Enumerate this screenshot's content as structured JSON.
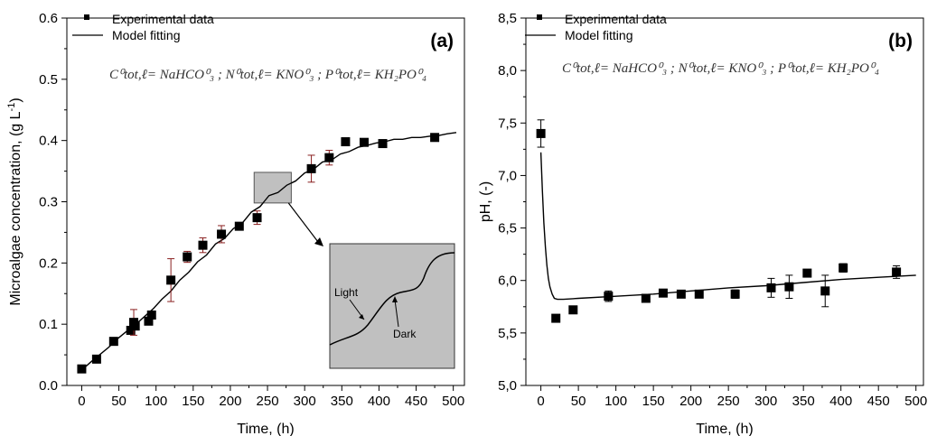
{
  "chart_data": [
    {
      "type": "scatter",
      "panel_label": "(a)",
      "xlabel": "Time, (h)",
      "ylabel": "Microalgae concentration, (g L",
      "ylabel_sup": "-1",
      "ylabel_close": ")",
      "xlim": [
        -20,
        515
      ],
      "ylim": [
        0,
        0.6
      ],
      "xticks": [
        0,
        50,
        100,
        150,
        200,
        250,
        300,
        350,
        400,
        450,
        500
      ],
      "xtick_labels": [
        "0",
        "50",
        "100",
        "150",
        "200",
        "250",
        "300",
        "350",
        "400",
        "450",
        "500"
      ],
      "yticks": [
        0.0,
        0.1,
        0.2,
        0.3,
        0.4,
        0.5,
        0.6
      ],
      "ytick_labels": [
        "0.0",
        "0.1",
        "0.2",
        "0.3",
        "0.4",
        "0.5",
        "0.6"
      ],
      "legend": [
        "Experimental data",
        "Model fitting"
      ],
      "formula": "C⁰tot,ℓ= NaHCO⁰₃ ; N⁰tot,ℓ= KNO⁰₃ ; P⁰tot,ℓ= KH₂PO⁰₄",
      "inset_labels": {
        "light": "Light",
        "dark": "Dark"
      },
      "series": [
        {
          "name": "Experimental data",
          "x": [
            0,
            20,
            43,
            66,
            70,
            72,
            90,
            94,
            120,
            142,
            163,
            188,
            212,
            236,
            309,
            333,
            355,
            380,
            405,
            475
          ],
          "y": [
            0.027,
            0.043,
            0.072,
            0.09,
            0.103,
            0.097,
            0.105,
            0.115,
            0.172,
            0.21,
            0.229,
            0.247,
            0.26,
            0.274,
            0.354,
            0.372,
            0.398,
            0.397,
            0.395,
            0.405
          ],
          "err": [
            0.004,
            0.006,
            0.005,
            0.004,
            0.021,
            0.006,
            0.005,
            0.006,
            0.035,
            0.009,
            0.012,
            0.014,
            0.005,
            0.011,
            0.022,
            0.012,
            0.005,
            0.003,
            0.003,
            0.004
          ]
        },
        {
          "name": "Model fitting",
          "x": [
            0,
            12,
            24,
            36,
            48,
            60,
            72,
            84,
            96,
            108,
            120,
            132,
            144,
            156,
            168,
            180,
            192,
            204,
            216,
            228,
            240,
            252,
            264,
            276,
            288,
            300,
            312,
            324,
            336,
            348,
            360,
            372,
            384,
            396,
            408,
            420,
            432,
            444,
            456,
            468,
            480,
            492,
            504
          ],
          "y": [
            0.025,
            0.038,
            0.05,
            0.062,
            0.076,
            0.088,
            0.099,
            0.112,
            0.125,
            0.141,
            0.154,
            0.172,
            0.185,
            0.202,
            0.213,
            0.231,
            0.24,
            0.256,
            0.265,
            0.283,
            0.292,
            0.31,
            0.315,
            0.327,
            0.334,
            0.347,
            0.353,
            0.365,
            0.368,
            0.378,
            0.382,
            0.389,
            0.392,
            0.396,
            0.398,
            0.402,
            0.402,
            0.405,
            0.405,
            0.407,
            0.408,
            0.411,
            0.413
          ]
        }
      ]
    },
    {
      "type": "scatter",
      "panel_label": "(b)",
      "xlabel": "Time, (h)",
      "ylabel": "pH, (-)",
      "xlim": [
        -20,
        510
      ],
      "ylim": [
        5.0,
        8.5
      ],
      "xticks": [
        0,
        50,
        100,
        150,
        200,
        250,
        300,
        350,
        400,
        450,
        500
      ],
      "xtick_labels": [
        "0",
        "50",
        "100",
        "150",
        "200",
        "250",
        "300",
        "350",
        "400",
        "450",
        "500"
      ],
      "yticks": [
        5.0,
        5.5,
        6.0,
        6.5,
        7.0,
        7.5,
        8.0,
        8.5
      ],
      "ytick_labels": [
        "5,0",
        "5,5",
        "6,0",
        "6,5",
        "7,0",
        "7,5",
        "8,0",
        "8,5"
      ],
      "legend": [
        "Experimental data",
        "Model fitting"
      ],
      "formula": "C⁰tot,ℓ= NaHCO⁰₃ ; N⁰tot,ℓ= KNO⁰₃ ; P⁰tot,ℓ= KH₂PO⁰₄",
      "series": [
        {
          "name": "Experimental data",
          "x": [
            0,
            20,
            43,
            90,
            140,
            163,
            187,
            211,
            259,
            307,
            331,
            355,
            379,
            403,
            474
          ],
          "y": [
            7.4,
            5.64,
            5.72,
            5.85,
            5.83,
            5.88,
            5.87,
            5.87,
            5.87,
            5.93,
            5.94,
            6.07,
            5.9,
            6.12,
            6.08
          ],
          "err": [
            0.13,
            0.0,
            0.0,
            0.05,
            0.0,
            0.0,
            0.0,
            0.0,
            0.04,
            0.09,
            0.11,
            0.0,
            0.15,
            0.04,
            0.06
          ]
        },
        {
          "name": "Model fitting",
          "x": [
            0,
            2,
            4,
            6,
            8,
            10,
            12,
            15,
            18,
            22,
            30,
            50,
            100,
            150,
            200,
            250,
            300,
            350,
            400,
            450,
            500
          ],
          "y": [
            7.22,
            6.85,
            6.55,
            6.32,
            6.15,
            6.02,
            5.94,
            5.87,
            5.83,
            5.82,
            5.82,
            5.83,
            5.85,
            5.87,
            5.9,
            5.93,
            5.95,
            5.98,
            6.01,
            6.03,
            6.05
          ]
        }
      ]
    }
  ]
}
